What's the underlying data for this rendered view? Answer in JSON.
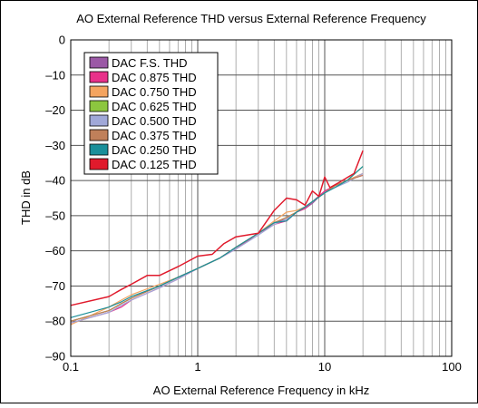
{
  "chart_data": {
    "type": "line",
    "title": "AO External Reference THD versus External Reference Frequency",
    "xlabel": "AO External Reference Frequency in kHz",
    "ylabel": "THD in dB",
    "x_scale": "log",
    "xlim": [
      0.1,
      100
    ],
    "ylim": [
      -90,
      0
    ],
    "x_ticks": [
      0.1,
      1,
      10,
      100
    ],
    "x_tick_labels": [
      "0.1",
      "1",
      "10",
      "100"
    ],
    "y_ticks": [
      0,
      -10,
      -20,
      -30,
      -40,
      -50,
      -60,
      -70,
      -80,
      -90
    ],
    "y_tick_labels": [
      "0",
      "–10",
      "–20",
      "–30",
      "–40",
      "–50",
      "–60",
      "–70",
      "–80",
      "–90"
    ],
    "grid": true,
    "legend_position": "top-left",
    "series": [
      {
        "name": "DAC F.S. THD",
        "color": "#9b59a6",
        "points": [
          [
            0.1,
            -80
          ],
          [
            0.2,
            -77
          ],
          [
            0.25,
            -75
          ],
          [
            0.3,
            -73.5
          ],
          [
            0.5,
            -70
          ],
          [
            0.7,
            -67.5
          ],
          [
            1,
            -65
          ],
          [
            1.5,
            -62
          ],
          [
            2,
            -59
          ],
          [
            3,
            -55
          ],
          [
            4,
            -52
          ],
          [
            5,
            -51
          ],
          [
            6,
            -49
          ],
          [
            7,
            -48
          ],
          [
            8,
            -46.5
          ],
          [
            10,
            -43
          ],
          [
            12,
            -41.5
          ],
          [
            15,
            -40
          ],
          [
            20,
            -38
          ]
        ]
      },
      {
        "name": "DAC 0.875 THD",
        "color": "#e8318a",
        "points": [
          [
            0.1,
            -80.5
          ],
          [
            0.2,
            -77.5
          ],
          [
            0.25,
            -76
          ],
          [
            0.3,
            -74
          ],
          [
            0.5,
            -70.5
          ],
          [
            0.7,
            -68
          ],
          [
            1,
            -65
          ],
          [
            1.5,
            -62
          ],
          [
            2,
            -59.5
          ],
          [
            3,
            -55
          ],
          [
            4,
            -52.5
          ],
          [
            5,
            -51.5
          ],
          [
            6,
            -49
          ],
          [
            7,
            -48
          ],
          [
            8,
            -46
          ],
          [
            10,
            -43
          ],
          [
            12,
            -41.5
          ],
          [
            15,
            -40
          ],
          [
            20,
            -38.5
          ]
        ]
      },
      {
        "name": "DAC 0.750 THD",
        "color": "#f4a460",
        "points": [
          [
            0.1,
            -81
          ],
          [
            0.2,
            -76
          ],
          [
            0.25,
            -74
          ],
          [
            0.3,
            -72.5
          ],
          [
            0.5,
            -69.5
          ],
          [
            0.7,
            -67.5
          ],
          [
            1,
            -65
          ],
          [
            1.5,
            -62
          ],
          [
            2,
            -59
          ],
          [
            3,
            -55
          ],
          [
            4,
            -51.5
          ],
          [
            5,
            -49
          ],
          [
            6,
            -48.5
          ],
          [
            7,
            -47.5
          ],
          [
            8,
            -46
          ],
          [
            10,
            -43.5
          ],
          [
            12,
            -41.5
          ],
          [
            15,
            -40
          ],
          [
            20,
            -38
          ]
        ]
      },
      {
        "name": "DAC 0.625 THD",
        "color": "#8cc63f",
        "points": [
          [
            0.1,
            -80
          ],
          [
            0.2,
            -77
          ],
          [
            0.25,
            -75
          ],
          [
            0.3,
            -73.5
          ],
          [
            0.5,
            -70
          ],
          [
            0.7,
            -67.5
          ],
          [
            1,
            -65
          ],
          [
            1.5,
            -62
          ],
          [
            2,
            -59
          ],
          [
            3,
            -55
          ],
          [
            4,
            -52
          ],
          [
            5,
            -50.5
          ],
          [
            6,
            -49
          ],
          [
            7,
            -47.5
          ],
          [
            8,
            -46
          ],
          [
            10,
            -43.5
          ],
          [
            12,
            -41.5
          ],
          [
            15,
            -40
          ],
          [
            20,
            -36
          ]
        ]
      },
      {
        "name": "DAC 0.500 THD",
        "color": "#a0a8d8",
        "points": [
          [
            0.1,
            -80.5
          ],
          [
            0.2,
            -77.5
          ],
          [
            0.25,
            -75.5
          ],
          [
            0.3,
            -74
          ],
          [
            0.5,
            -70.5
          ],
          [
            0.7,
            -68
          ],
          [
            1,
            -65
          ],
          [
            1.5,
            -62
          ],
          [
            2,
            -59.5
          ],
          [
            3,
            -55.5
          ],
          [
            4,
            -52.5
          ],
          [
            5,
            -51
          ],
          [
            6,
            -49
          ],
          [
            7,
            -47.5
          ],
          [
            8,
            -46
          ],
          [
            10,
            -43.5
          ],
          [
            12,
            -42
          ],
          [
            15,
            -40.5
          ],
          [
            20,
            -38
          ]
        ]
      },
      {
        "name": "DAC 0.375 THD",
        "color": "#c0805a",
        "points": [
          [
            0.1,
            -80
          ],
          [
            0.2,
            -77
          ],
          [
            0.25,
            -75
          ],
          [
            0.3,
            -73.5
          ],
          [
            0.5,
            -70
          ],
          [
            0.7,
            -67.5
          ],
          [
            1,
            -65
          ],
          [
            1.5,
            -62
          ],
          [
            2,
            -59
          ],
          [
            3,
            -55
          ],
          [
            4,
            -52
          ],
          [
            5,
            -50.5
          ],
          [
            6,
            -49
          ],
          [
            7,
            -47.5
          ],
          [
            8,
            -46
          ],
          [
            10,
            -43.5
          ],
          [
            12,
            -41.5
          ],
          [
            15,
            -40
          ],
          [
            20,
            -38.5
          ]
        ]
      },
      {
        "name": "DAC 0.250 THD",
        "color": "#1a8f9a",
        "points": [
          [
            0.1,
            -79
          ],
          [
            0.2,
            -76
          ],
          [
            0.25,
            -74.5
          ],
          [
            0.3,
            -73
          ],
          [
            0.5,
            -70
          ],
          [
            0.7,
            -67.5
          ],
          [
            1,
            -65
          ],
          [
            1.5,
            -62
          ],
          [
            2,
            -59
          ],
          [
            3,
            -55
          ],
          [
            4,
            -52
          ],
          [
            5,
            -51.5
          ],
          [
            6,
            -49
          ],
          [
            7,
            -47.5
          ],
          [
            8,
            -46
          ],
          [
            10,
            -43.5
          ],
          [
            12,
            -42
          ],
          [
            15,
            -40
          ],
          [
            20,
            -36
          ]
        ]
      },
      {
        "name": "DAC 0.125 THD",
        "color": "#e01a2c",
        "points": [
          [
            0.1,
            -75.5
          ],
          [
            0.2,
            -73
          ],
          [
            0.25,
            -71
          ],
          [
            0.3,
            -69.5
          ],
          [
            0.4,
            -67
          ],
          [
            0.5,
            -67
          ],
          [
            0.7,
            -64.5
          ],
          [
            1,
            -61.5
          ],
          [
            1.3,
            -61
          ],
          [
            1.6,
            -58
          ],
          [
            2,
            -56
          ],
          [
            3,
            -55
          ],
          [
            4,
            -48.5
          ],
          [
            5,
            -45
          ],
          [
            6,
            -45.5
          ],
          [
            7,
            -47
          ],
          [
            8,
            -43
          ],
          [
            9,
            -44.5
          ],
          [
            10,
            -39
          ],
          [
            11,
            -42
          ],
          [
            13,
            -40.5
          ],
          [
            17,
            -38
          ],
          [
            20,
            -31.5
          ]
        ]
      }
    ]
  }
}
